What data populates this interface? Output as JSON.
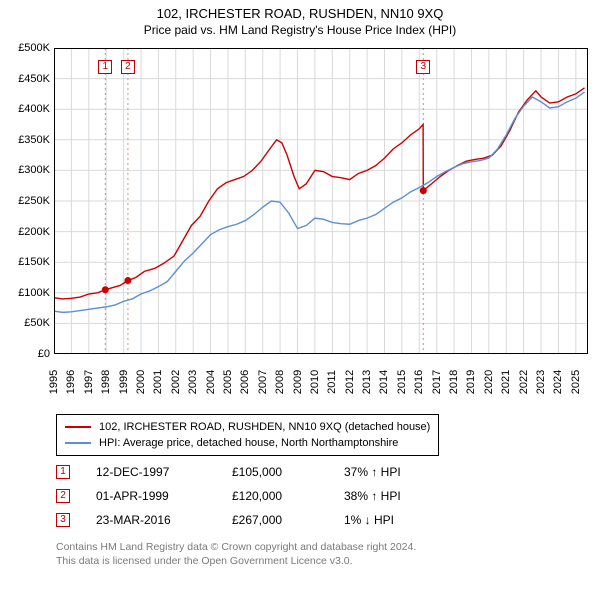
{
  "chart": {
    "type": "line",
    "title_line1": "102, IRCHESTER ROAD, RUSHDEN, NN10 9XQ",
    "title_line2": "Price paid vs. HM Land Registry's House Price Index (HPI)",
    "background_color": "#ffffff",
    "plot_border_color": "#000000",
    "grid_color": "#d9d9d9",
    "event_line_color": "#d88a8a",
    "event_line_dash": "2,3",
    "y": {
      "min": 0,
      "max": 500000,
      "step": 50000,
      "labels": [
        "£0",
        "£50K",
        "£100K",
        "£150K",
        "£200K",
        "£250K",
        "£300K",
        "£350K",
        "£400K",
        "£450K",
        "£500K"
      ]
    },
    "x": {
      "min": 1995,
      "max": 2025.7,
      "labels": [
        "1995",
        "1996",
        "1997",
        "1998",
        "1999",
        "2000",
        "2001",
        "2002",
        "2003",
        "2004",
        "2005",
        "2006",
        "2007",
        "2008",
        "2009",
        "2010",
        "2011",
        "2012",
        "2013",
        "2014",
        "2015",
        "2016",
        "2017",
        "2018",
        "2019",
        "2020",
        "2021",
        "2022",
        "2023",
        "2024",
        "2025"
      ]
    },
    "series": [
      {
        "id": "price_paid",
        "label": "102, IRCHESTER ROAD, RUSHDEN, NN10 9XQ (detached house)",
        "color": "#cc0000",
        "line_width": 1.4,
        "data": [
          [
            1995.0,
            92000
          ],
          [
            1995.5,
            90000
          ],
          [
            1996.0,
            91000
          ],
          [
            1996.5,
            93000
          ],
          [
            1997.0,
            98000
          ],
          [
            1997.5,
            100000
          ],
          [
            1997.95,
            105000
          ],
          [
            1998.3,
            108000
          ],
          [
            1998.8,
            112000
          ],
          [
            1999.25,
            120000
          ],
          [
            1999.7,
            125000
          ],
          [
            2000.2,
            135000
          ],
          [
            2000.8,
            140000
          ],
          [
            2001.3,
            148000
          ],
          [
            2001.9,
            160000
          ],
          [
            2002.4,
            185000
          ],
          [
            2002.9,
            210000
          ],
          [
            2003.4,
            225000
          ],
          [
            2003.9,
            250000
          ],
          [
            2004.4,
            270000
          ],
          [
            2004.9,
            280000
          ],
          [
            2005.4,
            285000
          ],
          [
            2005.9,
            290000
          ],
          [
            2006.4,
            300000
          ],
          [
            2006.9,
            315000
          ],
          [
            2007.4,
            335000
          ],
          [
            2007.8,
            350000
          ],
          [
            2008.1,
            345000
          ],
          [
            2008.4,
            325000
          ],
          [
            2008.8,
            290000
          ],
          [
            2009.1,
            270000
          ],
          [
            2009.5,
            278000
          ],
          [
            2010.0,
            300000
          ],
          [
            2010.5,
            298000
          ],
          [
            2011.0,
            290000
          ],
          [
            2011.5,
            288000
          ],
          [
            2012.0,
            285000
          ],
          [
            2012.5,
            295000
          ],
          [
            2013.0,
            300000
          ],
          [
            2013.5,
            308000
          ],
          [
            2014.0,
            320000
          ],
          [
            2014.5,
            335000
          ],
          [
            2015.0,
            345000
          ],
          [
            2015.5,
            358000
          ],
          [
            2016.0,
            368000
          ],
          [
            2016.22,
            375000
          ],
          [
            2016.23,
            267000
          ],
          [
            2016.7,
            278000
          ],
          [
            2017.2,
            290000
          ],
          [
            2017.7,
            300000
          ],
          [
            2018.2,
            308000
          ],
          [
            2018.7,
            315000
          ],
          [
            2019.2,
            318000
          ],
          [
            2019.7,
            320000
          ],
          [
            2020.2,
            325000
          ],
          [
            2020.7,
            340000
          ],
          [
            2021.2,
            365000
          ],
          [
            2021.7,
            395000
          ],
          [
            2022.2,
            415000
          ],
          [
            2022.7,
            430000
          ],
          [
            2023.0,
            420000
          ],
          [
            2023.5,
            410000
          ],
          [
            2024.0,
            412000
          ],
          [
            2024.5,
            420000
          ],
          [
            2025.0,
            425000
          ],
          [
            2025.5,
            435000
          ]
        ]
      },
      {
        "id": "hpi",
        "label": "HPI: Average price, detached house, North Northamptonshire",
        "color": "#5b8fd6",
        "line_width": 1.4,
        "data": [
          [
            1995.0,
            70000
          ],
          [
            1995.5,
            68000
          ],
          [
            1996.0,
            69000
          ],
          [
            1996.5,
            71000
          ],
          [
            1997.0,
            73000
          ],
          [
            1997.5,
            75000
          ],
          [
            1998.0,
            77000
          ],
          [
            1998.5,
            80000
          ],
          [
            1999.0,
            86000
          ],
          [
            1999.5,
            90000
          ],
          [
            2000.0,
            98000
          ],
          [
            2000.5,
            103000
          ],
          [
            2001.0,
            110000
          ],
          [
            2001.5,
            118000
          ],
          [
            2002.0,
            135000
          ],
          [
            2002.5,
            152000
          ],
          [
            2003.0,
            165000
          ],
          [
            2003.5,
            180000
          ],
          [
            2004.0,
            195000
          ],
          [
            2004.5,
            203000
          ],
          [
            2005.0,
            208000
          ],
          [
            2005.5,
            212000
          ],
          [
            2006.0,
            218000
          ],
          [
            2006.5,
            228000
          ],
          [
            2007.0,
            240000
          ],
          [
            2007.5,
            250000
          ],
          [
            2008.0,
            248000
          ],
          [
            2008.5,
            230000
          ],
          [
            2009.0,
            205000
          ],
          [
            2009.5,
            210000
          ],
          [
            2010.0,
            222000
          ],
          [
            2010.5,
            220000
          ],
          [
            2011.0,
            215000
          ],
          [
            2011.5,
            213000
          ],
          [
            2012.0,
            212000
          ],
          [
            2012.5,
            218000
          ],
          [
            2013.0,
            222000
          ],
          [
            2013.5,
            228000
          ],
          [
            2014.0,
            238000
          ],
          [
            2014.5,
            248000
          ],
          [
            2015.0,
            255000
          ],
          [
            2015.5,
            265000
          ],
          [
            2016.0,
            272000
          ],
          [
            2016.5,
            280000
          ],
          [
            2017.0,
            290000
          ],
          [
            2017.5,
            298000
          ],
          [
            2018.0,
            305000
          ],
          [
            2018.5,
            311000
          ],
          [
            2019.0,
            314000
          ],
          [
            2019.5,
            316000
          ],
          [
            2020.0,
            320000
          ],
          [
            2020.5,
            335000
          ],
          [
            2021.0,
            358000
          ],
          [
            2021.5,
            385000
          ],
          [
            2022.0,
            405000
          ],
          [
            2022.5,
            420000
          ],
          [
            2023.0,
            412000
          ],
          [
            2023.5,
            402000
          ],
          [
            2024.0,
            404000
          ],
          [
            2024.5,
            412000
          ],
          [
            2025.0,
            418000
          ],
          [
            2025.5,
            428000
          ]
        ]
      }
    ],
    "events": [
      {
        "n": "1",
        "x": 1997.95,
        "date": "12-DEC-1997",
        "price": "£105,000",
        "diff": "37% ↑ HPI",
        "dot_y": 105000
      },
      {
        "n": "2",
        "x": 1999.25,
        "date": "01-APR-1999",
        "price": "£120,000",
        "diff": "38% ↑ HPI",
        "dot_y": 120000
      },
      {
        "n": "3",
        "x": 2016.23,
        "date": "23-MAR-2016",
        "price": "£267,000",
        "diff": "1% ↓ HPI",
        "dot_y": 267000
      }
    ],
    "event_dot_color": "#cc0000",
    "event_dot_radius": 3.5
  },
  "legend": {
    "rows": [
      {
        "color": "#cc0000",
        "label": "102, IRCHESTER ROAD, RUSHDEN, NN10 9XQ (detached house)"
      },
      {
        "color": "#5b8fd6",
        "label": "HPI: Average price, detached house, North Northamptonshire"
      }
    ]
  },
  "footer": {
    "line1": "Contains HM Land Registry data © Crown copyright and database right 2024.",
    "line2": "This data is licensed under the Open Government Licence v3.0."
  }
}
